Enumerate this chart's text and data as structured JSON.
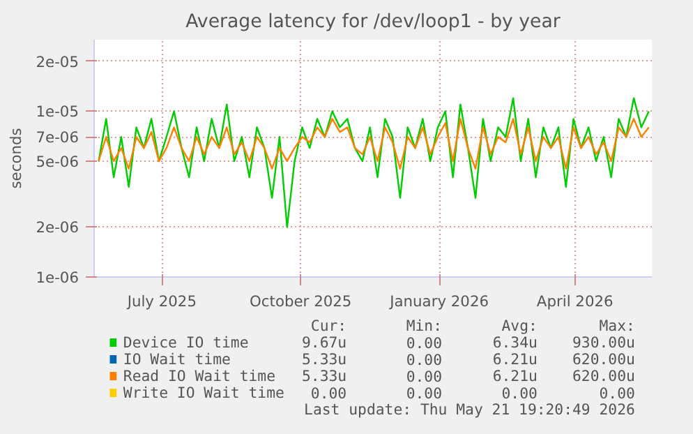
{
  "chart_data": {
    "type": "line",
    "title": "Average latency for /dev/loop1 - by year",
    "ylabel": "seconds",
    "log": "y",
    "grid": true,
    "legend": "bottom",
    "xlim": [
      "2025-05-17",
      "2026-05-22"
    ],
    "xticks": [
      {
        "value": "2025-07-01",
        "label": "July 2025"
      },
      {
        "value": "2025-10-01",
        "label": "October 2025"
      },
      {
        "value": "2026-01-01",
        "label": "January 2026"
      },
      {
        "value": "2026-04-01",
        "label": "April 2026"
      }
    ],
    "ylim": [
      1e-06,
      2.7e-05
    ],
    "yticks": [
      {
        "value": 1e-06,
        "label": "1e-06"
      },
      {
        "value": 2e-06,
        "label": "2e-06"
      },
      {
        "value": 5e-06,
        "label": "5e-06"
      },
      {
        "value": 7e-06,
        "label": "7e-06"
      },
      {
        "value": 1e-05,
        "label": "1e-05"
      },
      {
        "value": 2e-05,
        "label": "2e-05"
      }
    ],
    "x": [
      "2025-05-20",
      "2025-05-25",
      "2025-05-30",
      "2025-06-04",
      "2025-06-09",
      "2025-06-14",
      "2025-06-19",
      "2025-06-24",
      "2025-06-29",
      "2025-07-04",
      "2025-07-09",
      "2025-07-14",
      "2025-07-19",
      "2025-07-24",
      "2025-07-29",
      "2025-08-03",
      "2025-08-08",
      "2025-08-13",
      "2025-08-18",
      "2025-08-23",
      "2025-08-28",
      "2025-09-02",
      "2025-09-07",
      "2025-09-12",
      "2025-09-17",
      "2025-09-22",
      "2025-09-27",
      "2025-10-02",
      "2025-10-07",
      "2025-10-12",
      "2025-10-17",
      "2025-10-22",
      "2025-10-27",
      "2025-11-01",
      "2025-11-06",
      "2025-11-11",
      "2025-11-16",
      "2025-11-21",
      "2025-11-26",
      "2025-12-01",
      "2025-12-06",
      "2025-12-11",
      "2025-12-16",
      "2025-12-21",
      "2025-12-26",
      "2025-12-31",
      "2026-01-05",
      "2026-01-10",
      "2026-01-15",
      "2026-01-20",
      "2026-01-25",
      "2026-01-30",
      "2026-02-04",
      "2026-02-09",
      "2026-02-14",
      "2026-02-19",
      "2026-02-24",
      "2026-03-01",
      "2026-03-06",
      "2026-03-11",
      "2026-03-16",
      "2026-03-21",
      "2026-03-26",
      "2026-03-31",
      "2026-04-05",
      "2026-04-10",
      "2026-04-15",
      "2026-04-20",
      "2026-04-25",
      "2026-04-30",
      "2026-05-05",
      "2026-05-10",
      "2026-05-15",
      "2026-05-20"
    ],
    "series": [
      {
        "name": "Device IO time",
        "color": "#00cc00",
        "values": [
          5e-06,
          9e-06,
          4e-06,
          7e-06,
          3.5e-06,
          8e-06,
          6e-06,
          9e-06,
          5e-06,
          7e-06,
          1e-05,
          6e-06,
          4e-06,
          8e-06,
          5e-06,
          9e-06,
          6e-06,
          1.1e-05,
          5e-06,
          7e-06,
          4e-06,
          8e-06,
          6e-06,
          3e-06,
          7e-06,
          2e-06,
          5e-06,
          8e-06,
          6e-06,
          9e-06,
          7e-06,
          1e-05,
          8e-06,
          9e-06,
          6e-06,
          5e-06,
          8e-06,
          4e-06,
          9e-06,
          7e-06,
          3e-06,
          8e-06,
          6e-06,
          9e-06,
          5e-06,
          8e-06,
          1e-05,
          4e-06,
          1.1e-05,
          6e-06,
          3e-06,
          9e-06,
          5e-06,
          8e-06,
          7e-06,
          1.2e-05,
          5e-06,
          9e-06,
          4e-06,
          8e-06,
          6e-06,
          8e-06,
          3.5e-06,
          9e-06,
          6e-06,
          8e-06,
          5e-06,
          7e-06,
          4e-06,
          9e-06,
          7e-06,
          1.2e-05,
          8e-06,
          1e-05
        ]
      },
      {
        "name": "IO Wait time",
        "color": "#0066b3",
        "values": [
          null,
          null,
          null,
          null,
          null,
          null,
          null,
          null,
          null,
          null,
          null,
          null,
          null,
          null,
          null,
          null,
          null,
          null,
          null,
          null,
          null,
          null,
          null,
          null,
          null,
          null,
          null,
          null,
          null,
          null,
          null,
          null,
          null,
          null,
          null,
          null,
          null,
          null,
          null,
          null,
          null,
          null,
          null,
          null,
          null,
          null,
          null,
          null,
          null,
          null,
          null,
          null,
          null,
          null,
          null,
          null,
          null,
          null,
          null,
          null,
          null,
          null,
          null,
          null,
          null,
          null,
          null,
          null,
          null,
          null,
          null,
          null,
          null,
          null
        ]
      },
      {
        "name": "Read IO Wait time",
        "color": "#ff8000",
        "values": [
          5e-06,
          7e-06,
          5e-06,
          6e-06,
          4.5e-06,
          7e-06,
          6e-06,
          7.5e-06,
          5e-06,
          6e-06,
          8e-06,
          6e-06,
          5e-06,
          7e-06,
          5.5e-06,
          7e-06,
          6e-06,
          8e-06,
          5.5e-06,
          6.5e-06,
          5e-06,
          7e-06,
          6e-06,
          4.5e-06,
          6e-06,
          5e-06,
          6e-06,
          7e-06,
          6.5e-06,
          8e-06,
          7e-06,
          9e-06,
          7.5e-06,
          8e-06,
          6e-06,
          5.5e-06,
          7e-06,
          5e-06,
          8e-06,
          6.5e-06,
          4.5e-06,
          7e-06,
          6e-06,
          8e-06,
          5.5e-06,
          7e-06,
          8.5e-06,
          5e-06,
          9e-06,
          6e-06,
          4.5e-06,
          8e-06,
          5.5e-06,
          7e-06,
          6.5e-06,
          9e-06,
          5.5e-06,
          8e-06,
          5e-06,
          7e-06,
          6e-06,
          7e-06,
          4.5e-06,
          8e-06,
          6e-06,
          7e-06,
          5.5e-06,
          6.5e-06,
          5e-06,
          8e-06,
          7e-06,
          9e-06,
          7e-06,
          8e-06
        ]
      },
      {
        "name": "Write IO Wait time",
        "color": "#ffcc00",
        "values": [
          null,
          null,
          null,
          null,
          null,
          null,
          null,
          null,
          null,
          null,
          null,
          null,
          null,
          null,
          null,
          null,
          null,
          null,
          null,
          null,
          null,
          null,
          null,
          null,
          null,
          null,
          null,
          null,
          null,
          null,
          null,
          null,
          null,
          null,
          null,
          null,
          null,
          null,
          null,
          null,
          null,
          null,
          null,
          null,
          null,
          null,
          null,
          null,
          null,
          null,
          null,
          null,
          null,
          null,
          null,
          null,
          null,
          null,
          null,
          null,
          null,
          null,
          null,
          null,
          null,
          null,
          null,
          null,
          null,
          null,
          null,
          null,
          null,
          null
        ]
      }
    ],
    "annotations": [
      "Cur:",
      "Min:",
      "Avg:",
      "Max:",
      "9.67u",
      "0.00",
      "6.34u",
      "930.00u",
      "5.33u",
      "0.00",
      "6.21u",
      "620.00u",
      "5.33u",
      "0.00",
      "6.21u",
      "620.00u",
      "0.00",
      "0.00",
      "0.00",
      "0.00",
      "Last update: Thu May 21 19:20:49 2026"
    ]
  }
}
